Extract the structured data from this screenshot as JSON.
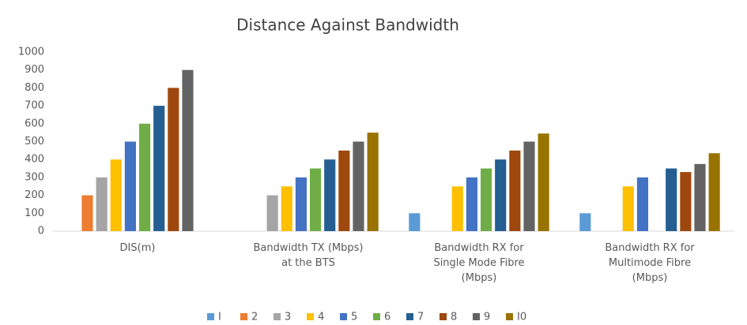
{
  "chart_data": {
    "type": "bar",
    "title": "Distance Against Bandwidth",
    "categories": [
      "DIS(m)",
      "Bandwidth TX (Mbps) at the BTS",
      "Bandwidth RX for Single Mode Fibre (Mbps)",
      "Bandwidth RX for Multimode Fibre (Mbps)"
    ],
    "series": [
      {
        "name": "I",
        "color": "#5b9bd5",
        "values": [
          0,
          0,
          100,
          100
        ]
      },
      {
        "name": "2",
        "color": "#ed7d31",
        "values": [
          200,
          0,
          0,
          0
        ]
      },
      {
        "name": "3",
        "color": "#a5a5a5",
        "values": [
          300,
          200,
          0,
          0
        ]
      },
      {
        "name": "4",
        "color": "#ffc000",
        "values": [
          400,
          250,
          250,
          250
        ]
      },
      {
        "name": "5",
        "color": "#4472c4",
        "values": [
          500,
          300,
          300,
          300
        ]
      },
      {
        "name": "6",
        "color": "#70ad47",
        "values": [
          600,
          350,
          350,
          0
        ]
      },
      {
        "name": "7",
        "color": "#255e91",
        "values": [
          700,
          400,
          400,
          350
        ]
      },
      {
        "name": "8",
        "color": "#9e480e",
        "values": [
          800,
          450,
          450,
          330
        ]
      },
      {
        "name": "9",
        "color": "#636363",
        "values": [
          900,
          500,
          500,
          375
        ]
      },
      {
        "name": "I0",
        "color": "#997300",
        "values": [
          0,
          550,
          545,
          435
        ]
      }
    ],
    "ylim": [
      0,
      1000
    ],
    "yticks": [
      0,
      100,
      200,
      300,
      400,
      500,
      600,
      700,
      800,
      900,
      1000
    ],
    "grid": false,
    "legend": "bottom"
  }
}
